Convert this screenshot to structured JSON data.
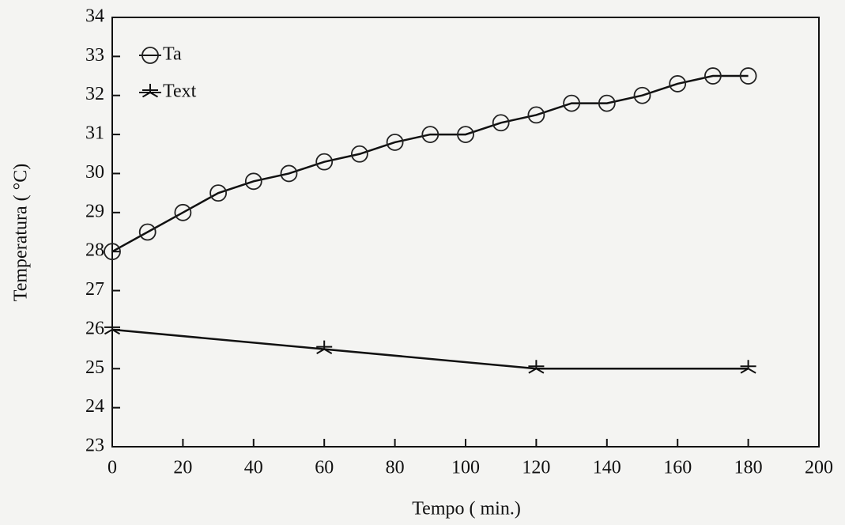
{
  "chart_data": {
    "type": "line",
    "xlabel": "Tempo ( min.)",
    "ylabel": "Temperatura ( °C)",
    "xlim": [
      0,
      200
    ],
    "xticks": [
      0,
      20,
      40,
      60,
      80,
      100,
      120,
      140,
      160,
      180,
      200
    ],
    "ylim": [
      23,
      34
    ],
    "yticks": [
      23,
      24,
      25,
      26,
      27,
      28,
      29,
      30,
      31,
      32,
      33,
      34
    ],
    "legend": "upper left",
    "series": [
      {
        "name": "Ta",
        "color": "#111111",
        "marker": "circle",
        "x": [
          0,
          10,
          20,
          30,
          40,
          50,
          60,
          70,
          80,
          90,
          100,
          110,
          120,
          130,
          140,
          150,
          160,
          170,
          180
        ],
        "values": [
          28,
          28.5,
          29,
          29.5,
          29.8,
          30,
          30.3,
          30.5,
          30.8,
          31,
          31,
          31.3,
          31.5,
          31.8,
          31.8,
          32,
          32.3,
          32.5,
          32.5
        ]
      },
      {
        "name": "Text",
        "color": "#111111",
        "marker": "star",
        "x": [
          0,
          60,
          120,
          180
        ],
        "values": [
          26,
          25.5,
          25,
          25
        ]
      }
    ]
  }
}
